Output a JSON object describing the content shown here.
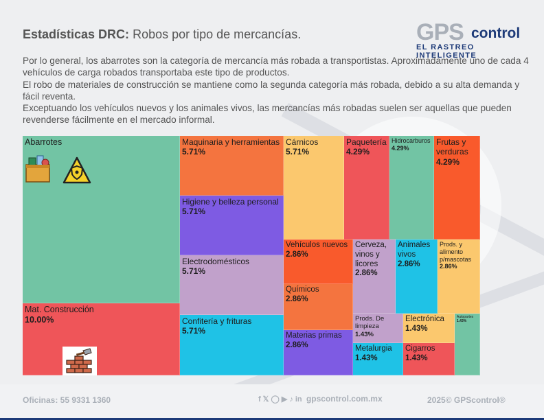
{
  "header": {
    "title_bold": "Estadísticas DRC:",
    "title_rest": " Robos por tipo de mercancías."
  },
  "logo": {
    "gps": "GPS",
    "control": "control",
    "tagline": "EL RASTREO INTELIGENTE"
  },
  "paragraphs": [
    "Por lo general, los abarrotes son la categoría de mercancía más robada a transportistas. Aproximadamente uno de cada 4 vehículos de carga robados transportaba este tipo de productos.",
    "El robo de materiales de construcción se mantiene como la segunda categoría más robada, debido a su alta demanda y fácil reventa.",
    "Exceptuando los vehículos nuevos y los animales vivos, las mercancías más robadas suelen ser aquellas que pueden revenderse fácilmente en el mercado informal."
  ],
  "chart_data": {
    "type": "treemap",
    "items": [
      {
        "name": "Abarrotes",
        "value_label": "",
        "color": "#72c4a4"
      },
      {
        "name": "Mat. Construcción",
        "value_label": "10.00%",
        "color": "#ef5559"
      },
      {
        "name": "Maquinaria y herramientas",
        "value_label": "5.71%",
        "color": "#f4743f"
      },
      {
        "name": "Higiene y belleza personal",
        "value_label": "5.71%",
        "color": "#7e5be3"
      },
      {
        "name": "Electrodomésticos",
        "value_label": "5.71%",
        "color": "#c1a1cb"
      },
      {
        "name": "Confitería y frituras",
        "value_label": "5.71%",
        "color": "#1fc2e6"
      },
      {
        "name": "Cárnicos",
        "value_label": "5.71%",
        "color": "#fbc86e"
      },
      {
        "name": "Paquetería",
        "value_label": "4.29%",
        "color": "#ef5559"
      },
      {
        "name": "Hidrocarburos",
        "value_label": "4.29%",
        "color": "#72c4a4"
      },
      {
        "name": "Frutas y verduras",
        "value_label": "4.29%",
        "color": "#f95a2c"
      },
      {
        "name": "Vehículos nuevos",
        "value_label": "2.86%",
        "color": "#f95a2c"
      },
      {
        "name": "Químicos",
        "value_label": "2.86%",
        "color": "#f4743f"
      },
      {
        "name": "Materias primas",
        "value_label": "2.86%",
        "color": "#7e5be3"
      },
      {
        "name": "Cerveza, vinos y licores",
        "value_label": "2.86%",
        "color": "#c1a1cb"
      },
      {
        "name": "Animales vivos",
        "value_label": "2.86%",
        "color": "#1fc2e6"
      },
      {
        "name": "Prods. y alimento p/mascotas",
        "value_label": "2.86%",
        "color": "#fbc86e"
      },
      {
        "name": "Prods. De limpieza",
        "value_label": "1.43%",
        "color": "#c1a1cb"
      },
      {
        "name": "Electrónica",
        "value_label": "1.43%",
        "color": "#fbc86e"
      },
      {
        "name": "Autopartes",
        "value_label": "1.43%",
        "color": "#72c4a4"
      },
      {
        "name": "Metalurgia",
        "value_label": "1.43%",
        "color": "#1fc2e6"
      },
      {
        "name": "Cigarros",
        "value_label": "1.43%",
        "color": "#ef5559"
      }
    ]
  },
  "icons": {
    "groceries": "grocery-bag-icon",
    "warning": "hazard-warning-icon",
    "bricks": "brick-wall-icon"
  },
  "footer": {
    "offices": "Oficinas: 55 9331 1360",
    "website": "gpscontrol.com.mx",
    "copyright": "2025© GPScontrol®",
    "social_icons": [
      "facebook-icon",
      "twitter-icon",
      "instagram-icon",
      "youtube-icon",
      "tiktok-icon",
      "linkedin-icon"
    ]
  }
}
